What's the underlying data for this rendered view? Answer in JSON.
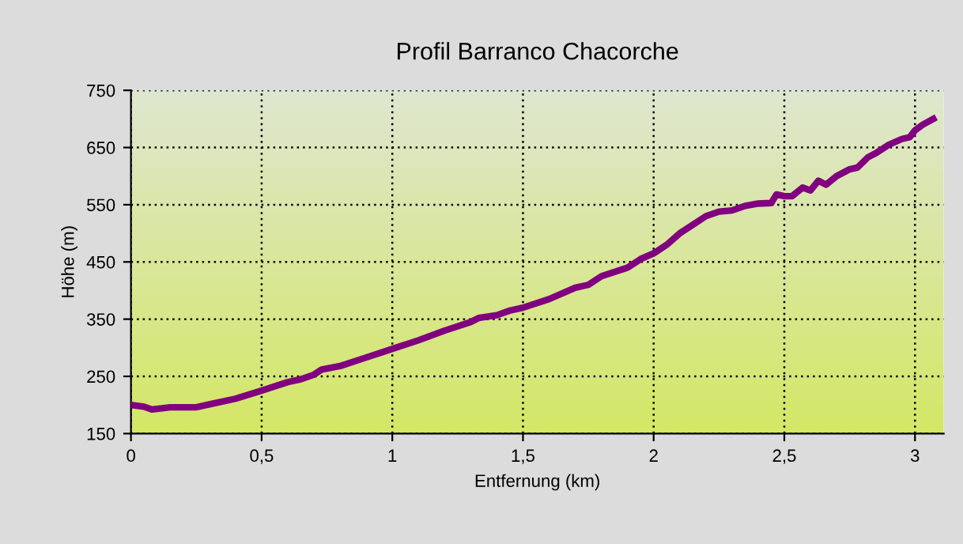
{
  "chart_data": {
    "type": "line",
    "title": "Profil Barranco Chacorche",
    "xlabel": "Entfernung (km)",
    "ylabel": "Höhe (m)",
    "x": [
      0,
      0.05,
      0.08,
      0.15,
      0.25,
      0.3,
      0.4,
      0.5,
      0.6,
      0.65,
      0.7,
      0.73,
      0.8,
      0.9,
      1.0,
      1.1,
      1.2,
      1.3,
      1.33,
      1.4,
      1.45,
      1.5,
      1.6,
      1.7,
      1.75,
      1.8,
      1.9,
      1.95,
      2.0,
      2.05,
      2.1,
      2.15,
      2.2,
      2.25,
      2.3,
      2.35,
      2.4,
      2.45,
      2.47,
      2.5,
      2.53,
      2.57,
      2.6,
      2.63,
      2.66,
      2.7,
      2.75,
      2.78,
      2.82,
      2.85,
      2.9,
      2.95,
      2.98,
      3.0,
      3.03,
      3.07
    ],
    "series": [
      {
        "color": "#800080",
        "values": [
          200,
          197,
          192,
          196,
          196,
          201,
          211,
          225,
          240,
          245,
          253,
          262,
          268,
          283,
          298,
          313,
          330,
          345,
          352,
          357,
          365,
          370,
          385,
          405,
          410,
          425,
          440,
          455,
          465,
          480,
          500,
          515,
          530,
          538,
          540,
          548,
          552,
          553,
          568,
          565,
          565,
          580,
          575,
          592,
          585,
          600,
          612,
          615,
          633,
          640,
          655,
          665,
          668,
          680,
          690,
          700
        ]
      }
    ],
    "xlim": [
      0,
      3.11
    ],
    "ylim": [
      150,
      750
    ],
    "xticks": [
      0,
      {
        "value": 0.5,
        "label": "0,5"
      },
      1,
      {
        "value": 1.5,
        "label": "1,5"
      },
      2,
      {
        "value": 2.5,
        "label": "2,5"
      },
      3
    ],
    "yticks": [
      150,
      250,
      350,
      450,
      550,
      650,
      750
    ],
    "grid": true,
    "legend": false,
    "marker": "none",
    "line_style": "solid"
  }
}
